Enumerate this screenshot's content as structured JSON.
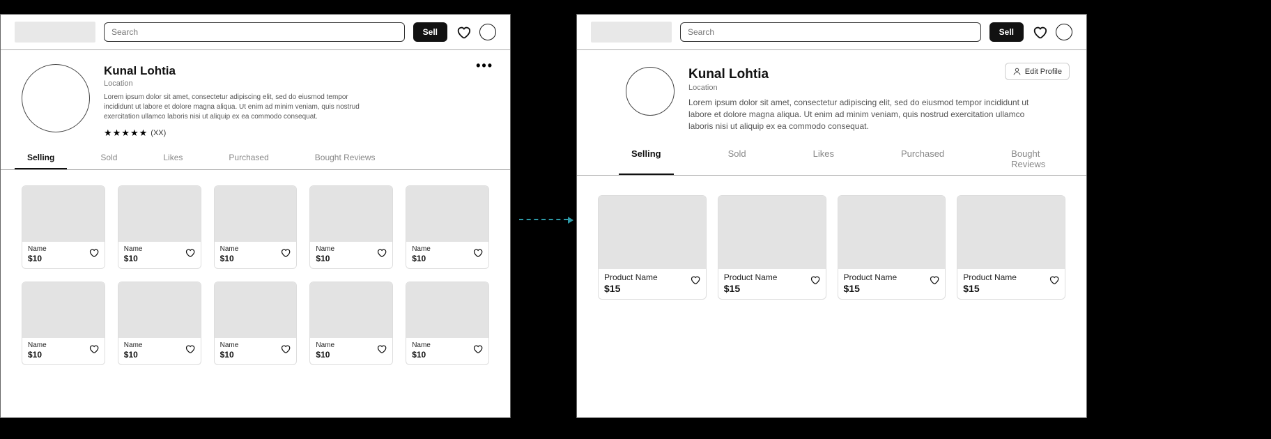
{
  "left": {
    "header": {
      "search_placeholder": "Search",
      "sell_label": "Sell"
    },
    "profile": {
      "name": "Kunal Lohtia",
      "location": "Location",
      "bio": "Lorem ipsum dolor sit amet, consectetur adipiscing elit, sed do eiusmod tempor incididunt ut labore et dolore magna aliqua. Ut enim ad minim veniam, quis nostrud exercitation ullamco laboris nisi ut aliquip ex ea commodo consequat.",
      "rating_count": "(XX)"
    },
    "tabs": [
      "Selling",
      "Sold",
      "Likes",
      "Purchased",
      "Bought Reviews"
    ],
    "active_tab": 0,
    "products": [
      {
        "name": "Name",
        "price": "$10"
      },
      {
        "name": "Name",
        "price": "$10"
      },
      {
        "name": "Name",
        "price": "$10"
      },
      {
        "name": "Name",
        "price": "$10"
      },
      {
        "name": "Name",
        "price": "$10"
      },
      {
        "name": "Name",
        "price": "$10"
      },
      {
        "name": "Name",
        "price": "$10"
      },
      {
        "name": "Name",
        "price": "$10"
      },
      {
        "name": "Name",
        "price": "$10"
      },
      {
        "name": "Name",
        "price": "$10"
      }
    ]
  },
  "right": {
    "header": {
      "search_placeholder": "Search",
      "sell_label": "Sell"
    },
    "profile": {
      "name": "Kunal Lohtia",
      "location": "Location",
      "bio": "Lorem ipsum dolor sit amet, consectetur adipiscing elit, sed do eiusmod tempor incididunt ut labore et dolore magna aliqua. Ut enim ad minim veniam, quis nostrud exercitation ullamco laboris nisi ut aliquip ex ea commodo consequat.",
      "edit_label": "Edit Profile"
    },
    "tabs": [
      "Selling",
      "Sold",
      "Likes",
      "Purchased",
      "Bought Reviews"
    ],
    "active_tab": 0,
    "products": [
      {
        "name": "Product Name",
        "price": "$15"
      },
      {
        "name": "Product Name",
        "price": "$15"
      },
      {
        "name": "Product Name",
        "price": "$15"
      },
      {
        "name": "Product Name",
        "price": "$15"
      }
    ]
  },
  "colors": {
    "arrow": "#2e9aa8",
    "placeholder": "#e3e3e3",
    "border": "#aaa"
  }
}
